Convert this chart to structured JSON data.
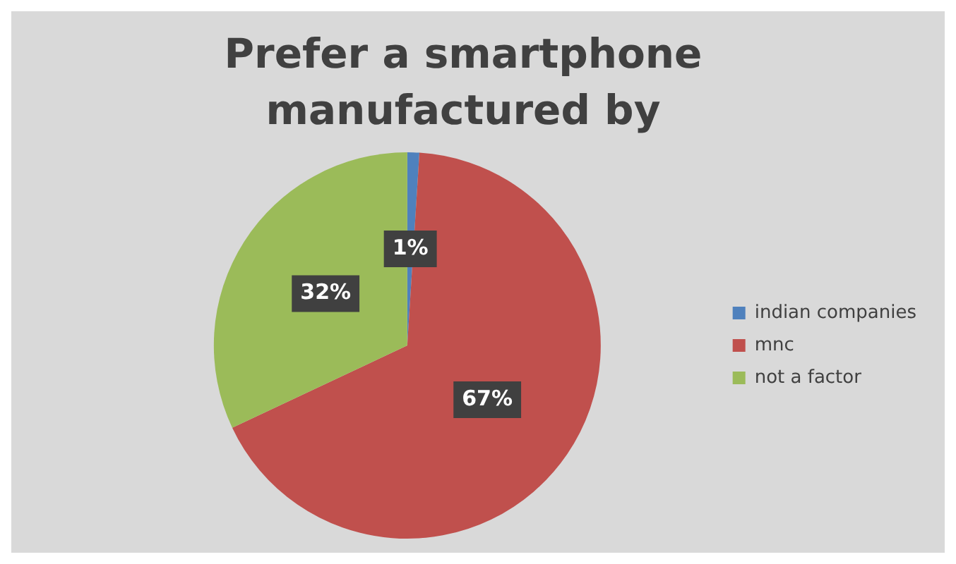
{
  "chart_data": {
    "type": "pie",
    "title": "Prefer a smartphone manufactured by",
    "categories": [
      "indian companies",
      "mnc",
      "not a factor"
    ],
    "values": [
      1,
      67,
      32
    ],
    "value_labels": [
      "1%",
      "67%",
      "32%"
    ],
    "colors": [
      "#4f81bd",
      "#c0504d",
      "#9bbb59"
    ],
    "legend": "right"
  }
}
